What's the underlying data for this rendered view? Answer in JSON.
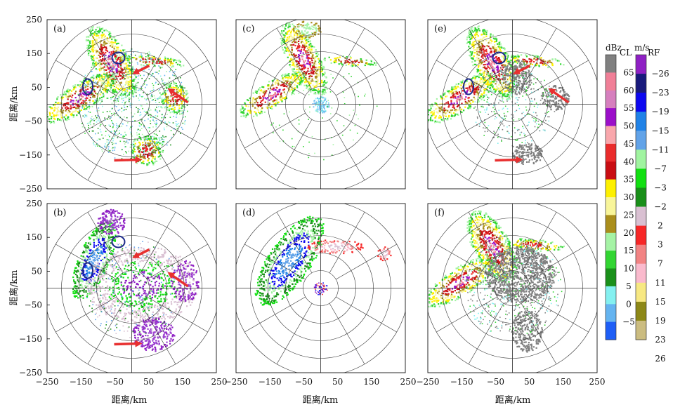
{
  "figure": {
    "panels": [
      {
        "id": "a",
        "label": "(a)",
        "row": 0,
        "col": 0
      },
      {
        "id": "c",
        "label": "(c)",
        "row": 0,
        "col": 1
      },
      {
        "id": "e",
        "label": "(e)",
        "row": 0,
        "col": 2
      },
      {
        "id": "b",
        "label": "(b)",
        "row": 1,
        "col": 0
      },
      {
        "id": "d",
        "label": "(d)",
        "row": 1,
        "col": 1
      },
      {
        "id": "f",
        "label": "(f)",
        "row": 1,
        "col": 2
      }
    ],
    "axis_range_km": [
      -250,
      250
    ],
    "x_ticks": [
      "−250",
      "−150",
      "−50",
      "50",
      "150",
      "250"
    ],
    "y_ticks": [
      "250",
      "150",
      "50",
      "−50",
      "−150",
      "−250"
    ],
    "x_ticks_row_end": [
      "250"
    ],
    "xlabel": "距离/km",
    "ylabel": "距离/km",
    "range_rings_km": [
      50,
      100,
      150,
      200,
      250
    ],
    "radial_spokes_deg": 30
  },
  "colorbars": {
    "reflectivity": {
      "unit": "dBz",
      "top_label": "CL",
      "top_color": "#808080",
      "labels": [
        "65",
        "60",
        "55",
        "50",
        "45",
        "40",
        "35",
        "30",
        "25",
        "20",
        "15",
        "10",
        "5",
        "0",
        "−5"
      ],
      "colors": [
        "#808080",
        "#f07f97",
        "#d67fbe",
        "#9b0fc9",
        "#f9a7ac",
        "#ea2c2c",
        "#c90e13",
        "#fdf000",
        "#f8f59a",
        "#aa8e1c",
        "#a5f3a5",
        "#32d532",
        "#1a901a",
        "#84f0f0",
        "#65b4f0",
        "#1e5ef6"
      ]
    },
    "velocity": {
      "unit": "m/s",
      "top_label": "RF",
      "top_color": "#8f20c4",
      "labels": [
        "−26",
        "−23",
        "−19",
        "−15",
        "−11",
        "−7",
        "−3",
        "−2",
        "2",
        "3",
        "7",
        "11",
        "15",
        "19",
        "23",
        "26"
      ],
      "colors": [
        "#8f20c4",
        "#191a7c",
        "#0d08f0",
        "#2082e7",
        "#62a3e8",
        "#a0f4a0",
        "#11e011",
        "#198f19",
        "#d9c0d2",
        "#f72727",
        "#f28383",
        "#fabacd",
        "#f7e882",
        "#8d8817",
        "#cbbc80"
      ]
    }
  },
  "annotations": {
    "arrow_color": "#e83030",
    "ellipse_color": "#1c2a8a"
  }
}
